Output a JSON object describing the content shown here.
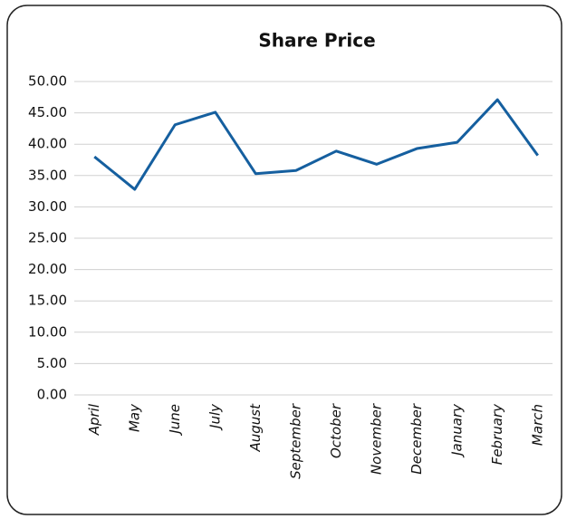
{
  "chart_data": {
    "type": "line",
    "title": "Share Price",
    "categories": [
      "April",
      "May",
      "June",
      "July",
      "August",
      "September",
      "October",
      "November",
      "December",
      "January",
      "February",
      "March"
    ],
    "series": [
      {
        "name": "Share Price",
        "color": "#155f9f",
        "values": [
          38.0,
          32.8,
          43.1,
          45.1,
          35.3,
          35.8,
          38.9,
          36.8,
          39.3,
          40.3,
          47.1,
          38.2
        ]
      }
    ],
    "ylim": [
      0,
      50
    ],
    "yticks": [
      {
        "value": 0,
        "label": "0.00"
      },
      {
        "value": 5,
        "label": "5.00"
      },
      {
        "value": 10,
        "label": "10.00"
      },
      {
        "value": 15,
        "label": "15.00"
      },
      {
        "value": 20,
        "label": "20.00"
      },
      {
        "value": 25,
        "label": "25.00"
      },
      {
        "value": 30,
        "label": "30.00"
      },
      {
        "value": 35,
        "label": "35.00"
      },
      {
        "value": 40,
        "label": "40.00"
      },
      {
        "value": 45,
        "label": "45.00"
      },
      {
        "value": 50,
        "label": "50.00"
      }
    ],
    "grid": true
  }
}
